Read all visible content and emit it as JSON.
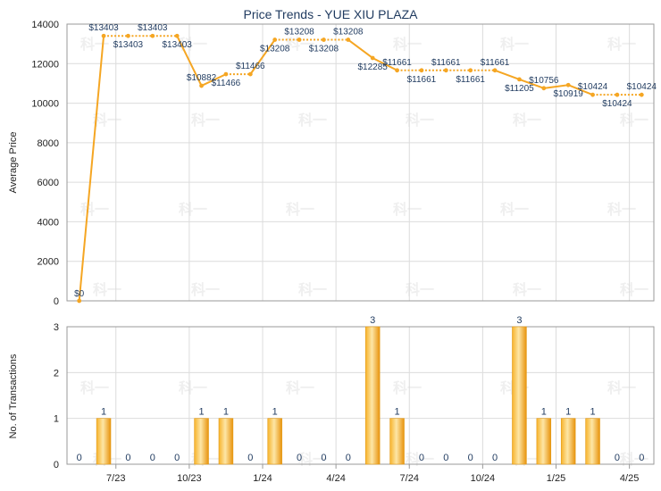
{
  "chart_data": [
    {
      "type": "line",
      "title": "Price Trends - YUE XIU PLAZA",
      "ylabel": "Average Price",
      "ylim": [
        0,
        14000
      ],
      "yticks": [
        "0",
        "2000",
        "4000",
        "6000",
        "8000",
        "10000",
        "12000",
        "14000"
      ],
      "grid": true,
      "color": "#f5a623",
      "labels": [
        "$0",
        "$13403",
        "$13403",
        "$13403",
        "$13403",
        "$10882",
        "$11466",
        "$11466",
        "$13208",
        "$13208",
        "$13208",
        "$13208",
        "$12285",
        "$11661",
        "$11661",
        "$11661",
        "$11661",
        "$11661",
        "$11205",
        "$10756",
        "$10919",
        "$10424",
        "$10424",
        "$10424"
      ],
      "values": [
        0,
        13403,
        13403,
        13403,
        13403,
        10882,
        11466,
        11466,
        13208,
        13208,
        13208,
        13208,
        12285,
        11661,
        11661,
        11661,
        11661,
        11661,
        11205,
        10756,
        10919,
        10424,
        10424,
        10424
      ]
    },
    {
      "type": "bar",
      "ylabel": "No. of Transactions",
      "ylim": [
        0,
        3
      ],
      "yticks": [
        "0",
        "1",
        "2",
        "3"
      ],
      "xticks": [
        "7/23",
        "10/23",
        "1/24",
        "4/24",
        "7/24",
        "10/24",
        "1/25",
        "4/25"
      ],
      "color": "#f5a623",
      "values": [
        0,
        1,
        0,
        0,
        0,
        1,
        1,
        0,
        1,
        0,
        0,
        0,
        3,
        1,
        0,
        0,
        0,
        0,
        3,
        1,
        1,
        1,
        0,
        0
      ]
    }
  ]
}
